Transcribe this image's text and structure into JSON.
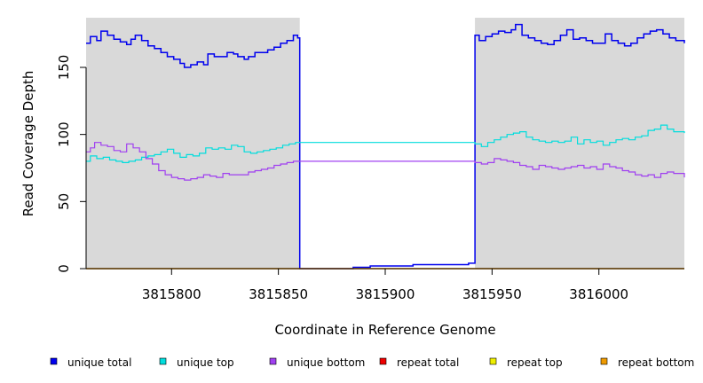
{
  "chart_data": {
    "type": "line",
    "title": "",
    "xlabel": "Coordinate in Reference Genome",
    "ylabel": "Read Coverage Depth",
    "xlim": [
      3815760,
      3816040
    ],
    "ylim": [
      0,
      187
    ],
    "x_ticks": [
      3815800,
      3815850,
      3815900,
      3815950,
      3816000
    ],
    "y_ticks": [
      0,
      50,
      100,
      150
    ],
    "shaded_regions": [
      [
        3815760,
        3815860
      ],
      [
        3815942,
        3816040
      ]
    ],
    "legend_position": "bottom",
    "series": [
      {
        "name": "unique total",
        "color": "#0000ee",
        "points": [
          [
            3815760,
            168
          ],
          [
            3815762,
            173
          ],
          [
            3815765,
            170
          ],
          [
            3815767,
            177
          ],
          [
            3815770,
            174
          ],
          [
            3815773,
            171
          ],
          [
            3815776,
            169
          ],
          [
            3815779,
            167
          ],
          [
            3815781,
            171
          ],
          [
            3815783,
            174
          ],
          [
            3815786,
            170
          ],
          [
            3815789,
            166
          ],
          [
            3815792,
            164
          ],
          [
            3815795,
            161
          ],
          [
            3815798,
            158
          ],
          [
            3815801,
            156
          ],
          [
            3815804,
            153
          ],
          [
            3815806,
            150
          ],
          [
            3815809,
            152
          ],
          [
            3815812,
            154
          ],
          [
            3815815,
            152
          ],
          [
            3815817,
            160
          ],
          [
            3815820,
            158
          ],
          [
            3815823,
            158
          ],
          [
            3815826,
            161
          ],
          [
            3815829,
            160
          ],
          [
            3815831,
            158
          ],
          [
            3815834,
            156
          ],
          [
            3815836,
            158
          ],
          [
            3815839,
            161
          ],
          [
            3815842,
            161
          ],
          [
            3815845,
            163
          ],
          [
            3815848,
            165
          ],
          [
            3815851,
            168
          ],
          [
            3815854,
            170
          ],
          [
            3815857,
            174
          ],
          [
            3815859,
            172
          ],
          [
            3815860,
            0
          ],
          [
            3815865,
            0
          ],
          [
            3815875,
            0
          ],
          [
            3815880,
            0
          ],
          [
            3815885,
            1
          ],
          [
            3815890,
            1
          ],
          [
            3815893,
            2
          ],
          [
            3815900,
            2
          ],
          [
            3815905,
            2
          ],
          [
            3815910,
            2
          ],
          [
            3815913,
            3
          ],
          [
            3815920,
            3
          ],
          [
            3815925,
            3
          ],
          [
            3815930,
            3
          ],
          [
            3815935,
            3
          ],
          [
            3815939,
            4
          ],
          [
            3815941,
            4
          ],
          [
            3815942,
            174
          ],
          [
            3815944,
            170
          ],
          [
            3815947,
            173
          ],
          [
            3815950,
            175
          ],
          [
            3815953,
            177
          ],
          [
            3815956,
            176
          ],
          [
            3815959,
            178
          ],
          [
            3815961,
            182
          ],
          [
            3815964,
            174
          ],
          [
            3815967,
            172
          ],
          [
            3815970,
            170
          ],
          [
            3815973,
            168
          ],
          [
            3815976,
            167
          ],
          [
            3815979,
            170
          ],
          [
            3815982,
            174
          ],
          [
            3815985,
            178
          ],
          [
            3815988,
            171
          ],
          [
            3815991,
            172
          ],
          [
            3815994,
            170
          ],
          [
            3815997,
            168
          ],
          [
            3816000,
            168
          ],
          [
            3816003,
            175
          ],
          [
            3816006,
            170
          ],
          [
            3816009,
            168
          ],
          [
            3816012,
            166
          ],
          [
            3816015,
            168
          ],
          [
            3816018,
            172
          ],
          [
            3816021,
            175
          ],
          [
            3816024,
            177
          ],
          [
            3816027,
            178
          ],
          [
            3816030,
            175
          ],
          [
            3816033,
            172
          ],
          [
            3816036,
            170
          ],
          [
            3816040,
            168
          ]
        ]
      },
      {
        "name": "unique top",
        "color": "#00dddd",
        "points": [
          [
            3815760,
            80
          ],
          [
            3815762,
            84
          ],
          [
            3815765,
            82
          ],
          [
            3815768,
            83
          ],
          [
            3815771,
            81
          ],
          [
            3815774,
            80
          ],
          [
            3815777,
            79
          ],
          [
            3815780,
            80
          ],
          [
            3815783,
            81
          ],
          [
            3815786,
            83
          ],
          [
            3815789,
            84
          ],
          [
            3815792,
            85
          ],
          [
            3815795,
            87
          ],
          [
            3815798,
            89
          ],
          [
            3815801,
            86
          ],
          [
            3815804,
            83
          ],
          [
            3815807,
            85
          ],
          [
            3815810,
            84
          ],
          [
            3815813,
            86
          ],
          [
            3815816,
            90
          ],
          [
            3815819,
            89
          ],
          [
            3815822,
            90
          ],
          [
            3815825,
            89
          ],
          [
            3815828,
            92
          ],
          [
            3815831,
            91
          ],
          [
            3815834,
            87
          ],
          [
            3815837,
            86
          ],
          [
            3815840,
            87
          ],
          [
            3815843,
            88
          ],
          [
            3815846,
            89
          ],
          [
            3815849,
            90
          ],
          [
            3815852,
            92
          ],
          [
            3815855,
            93
          ],
          [
            3815858,
            94
          ],
          [
            3815860,
            94
          ],
          [
            3815942,
            93
          ],
          [
            3815945,
            91
          ],
          [
            3815948,
            94
          ],
          [
            3815951,
            96
          ],
          [
            3815954,
            98
          ],
          [
            3815957,
            100
          ],
          [
            3815960,
            101
          ],
          [
            3815963,
            102
          ],
          [
            3815966,
            98
          ],
          [
            3815969,
            96
          ],
          [
            3815972,
            95
          ],
          [
            3815975,
            94
          ],
          [
            3815978,
            95
          ],
          [
            3815981,
            94
          ],
          [
            3815984,
            95
          ],
          [
            3815987,
            98
          ],
          [
            3815990,
            93
          ],
          [
            3815993,
            96
          ],
          [
            3815996,
            94
          ],
          [
            3815999,
            95
          ],
          [
            3816002,
            92
          ],
          [
            3816005,
            94
          ],
          [
            3816008,
            96
          ],
          [
            3816011,
            97
          ],
          [
            3816014,
            96
          ],
          [
            3816017,
            98
          ],
          [
            3816020,
            99
          ],
          [
            3816023,
            103
          ],
          [
            3816026,
            104
          ],
          [
            3816029,
            107
          ],
          [
            3816032,
            104
          ],
          [
            3816035,
            102
          ],
          [
            3816040,
            101
          ]
        ]
      },
      {
        "name": "unique bottom",
        "color": "#a040f0",
        "points": [
          [
            3815760,
            87
          ],
          [
            3815762,
            90
          ],
          [
            3815764,
            94
          ],
          [
            3815767,
            92
          ],
          [
            3815770,
            91
          ],
          [
            3815773,
            88
          ],
          [
            3815776,
            87
          ],
          [
            3815779,
            93
          ],
          [
            3815782,
            90
          ],
          [
            3815785,
            87
          ],
          [
            3815788,
            82
          ],
          [
            3815791,
            78
          ],
          [
            3815794,
            73
          ],
          [
            3815797,
            70
          ],
          [
            3815800,
            68
          ],
          [
            3815803,
            67
          ],
          [
            3815806,
            66
          ],
          [
            3815809,
            67
          ],
          [
            3815812,
            68
          ],
          [
            3815815,
            70
          ],
          [
            3815818,
            69
          ],
          [
            3815821,
            68
          ],
          [
            3815824,
            71
          ],
          [
            3815827,
            70
          ],
          [
            3815830,
            70
          ],
          [
            3815833,
            70
          ],
          [
            3815836,
            72
          ],
          [
            3815839,
            73
          ],
          [
            3815842,
            74
          ],
          [
            3815845,
            75
          ],
          [
            3815848,
            77
          ],
          [
            3815851,
            78
          ],
          [
            3815854,
            79
          ],
          [
            3815857,
            80
          ],
          [
            3815860,
            80
          ],
          [
            3815942,
            79
          ],
          [
            3815945,
            78
          ],
          [
            3815948,
            79
          ],
          [
            3815951,
            82
          ],
          [
            3815954,
            81
          ],
          [
            3815957,
            80
          ],
          [
            3815960,
            79
          ],
          [
            3815963,
            77
          ],
          [
            3815966,
            76
          ],
          [
            3815969,
            74
          ],
          [
            3815972,
            77
          ],
          [
            3815975,
            76
          ],
          [
            3815978,
            75
          ],
          [
            3815981,
            74
          ],
          [
            3815984,
            75
          ],
          [
            3815987,
            76
          ],
          [
            3815990,
            77
          ],
          [
            3815993,
            75
          ],
          [
            3815996,
            76
          ],
          [
            3815999,
            74
          ],
          [
            3816002,
            78
          ],
          [
            3816005,
            76
          ],
          [
            3816008,
            75
          ],
          [
            3816011,
            73
          ],
          [
            3816014,
            72
          ],
          [
            3816017,
            70
          ],
          [
            3816020,
            69
          ],
          [
            3816023,
            70
          ],
          [
            3816026,
            68
          ],
          [
            3816029,
            71
          ],
          [
            3816032,
            72
          ],
          [
            3816035,
            71
          ],
          [
            3816040,
            68
          ]
        ]
      },
      {
        "name": "repeat total",
        "color": "#ee0000",
        "points": [
          [
            3815760,
            0
          ],
          [
            3816040,
            0
          ]
        ]
      },
      {
        "name": "repeat top",
        "color": "#eeee00",
        "points": [
          [
            3815760,
            0
          ],
          [
            3816040,
            0
          ]
        ]
      },
      {
        "name": "repeat bottom",
        "color": "#ee9a00",
        "points": [
          [
            3815760,
            0
          ],
          [
            3816040,
            0
          ]
        ]
      }
    ]
  }
}
